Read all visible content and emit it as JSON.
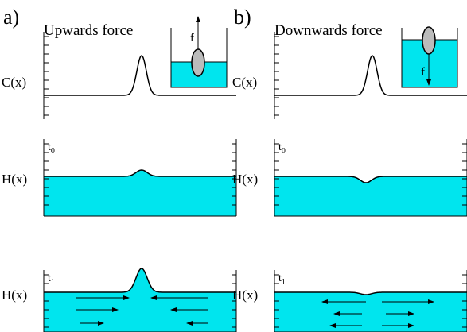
{
  "panels": [
    {
      "label": "a)",
      "title": "Upwards force",
      "force_label": "f",
      "rows": [
        {
          "axis_label": "C(x)"
        },
        {
          "axis_label": "H(x)",
          "time": "t",
          "time_sub": "0"
        },
        {
          "axis_label": "H(x)",
          "time": "t",
          "time_sub": "1"
        }
      ]
    },
    {
      "label": "b)",
      "title": "Downwards force",
      "force_label": "f",
      "rows": [
        {
          "axis_label": "C(x)"
        },
        {
          "axis_label": "H(x)",
          "time": "t",
          "time_sub": "0"
        },
        {
          "axis_label": "H(x)",
          "time": "t",
          "time_sub": "1"
        }
      ]
    }
  ]
}
